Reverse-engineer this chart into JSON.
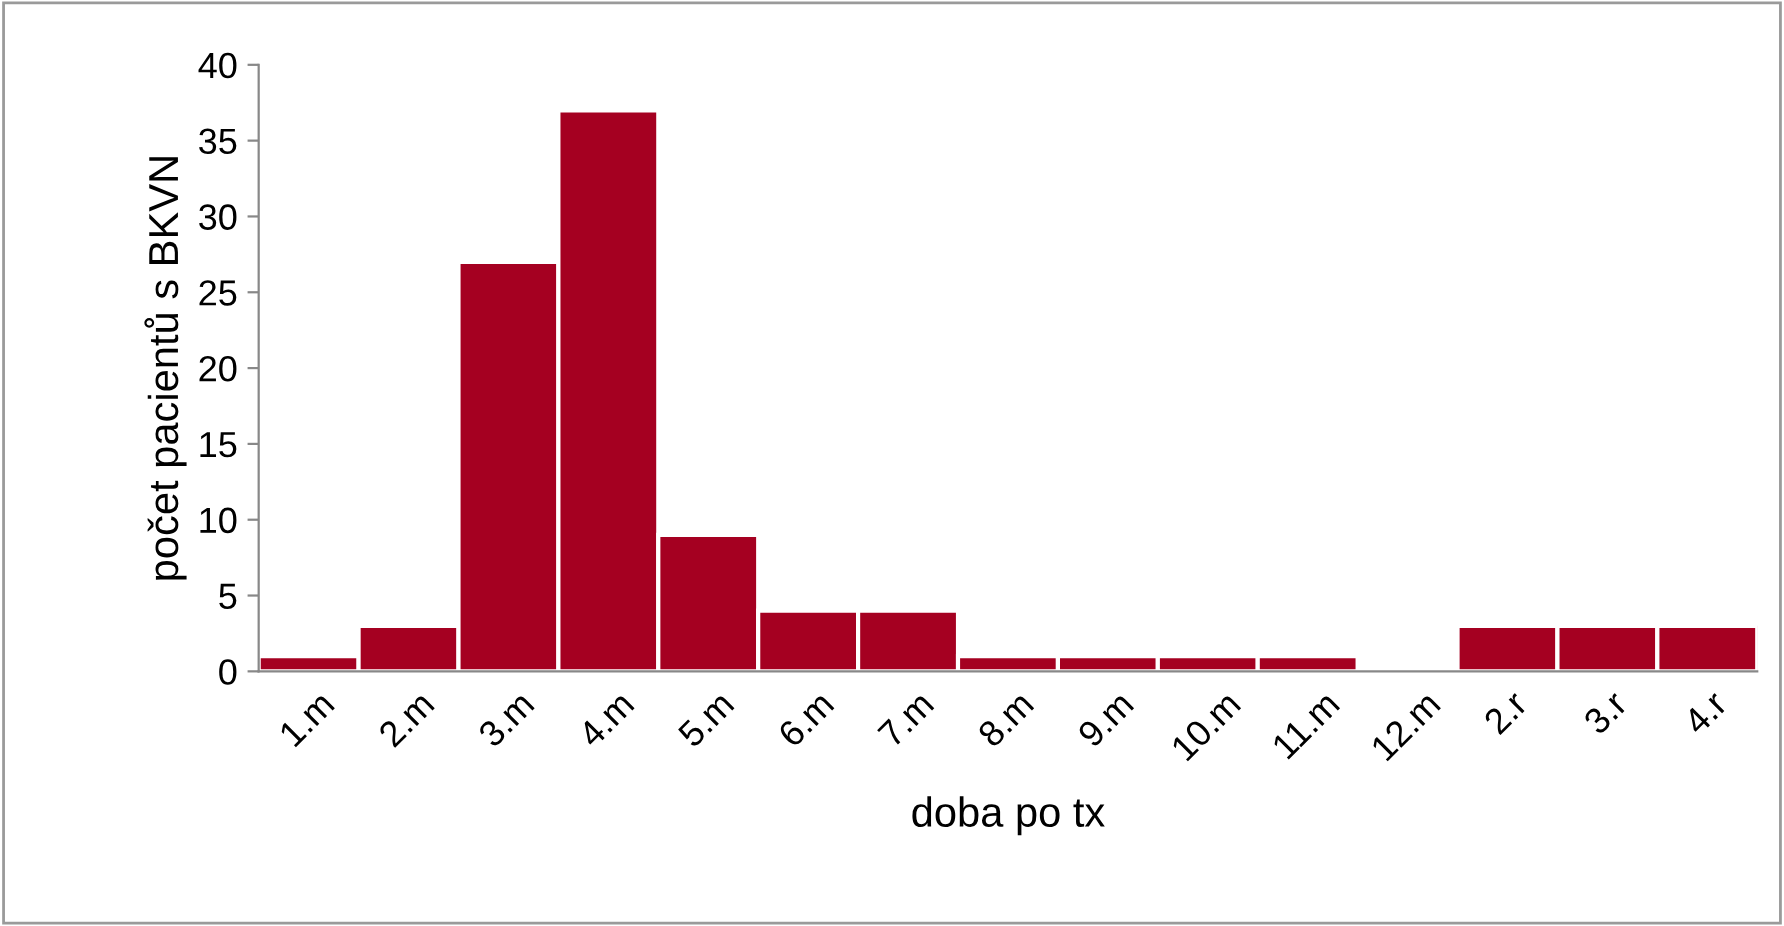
{
  "chart_data": {
    "type": "bar",
    "xlabel": "doba po tx",
    "ylabel": "počet pacientů s BKVN",
    "categories": [
      "1.m",
      "2.m",
      "3.m",
      "4.m",
      "5.m",
      "6.m",
      "7.m",
      "8.m",
      "9.m",
      "10.m",
      "11.m",
      "12.m",
      "2.r",
      "3.r",
      "4.r"
    ],
    "values": [
      1,
      3,
      27,
      37,
      9,
      4,
      4,
      1,
      1,
      1,
      1,
      null,
      3,
      3,
      3
    ],
    "color": "#a50021",
    "ylim": [
      0,
      40
    ],
    "yticks": [
      0,
      5,
      10,
      15,
      20,
      25,
      30,
      35,
      40
    ],
    "grid": false
  }
}
